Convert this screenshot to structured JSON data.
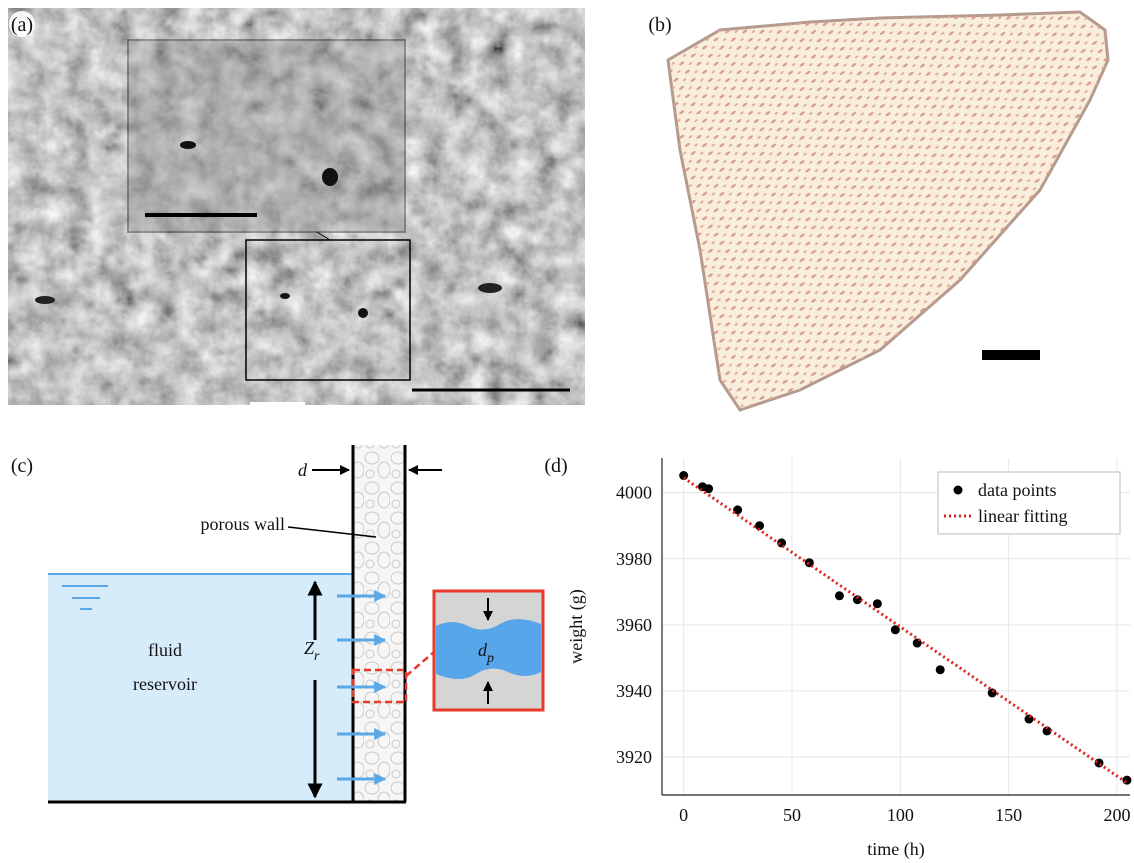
{
  "panels": {
    "a": "(a)",
    "b": "(b)",
    "c": "(c)",
    "d": "(d)"
  },
  "diagram": {
    "d_label": "d",
    "porous_wall": "porous wall",
    "z_r": {
      "main": "Z",
      "sub": "r"
    },
    "fluid_reservoir": [
      "fluid",
      "reservoir"
    ],
    "d_p": {
      "main": "d",
      "sub": "p"
    }
  },
  "chart_data": {
    "type": "scatter",
    "xlabel": "time (h)",
    "ylabel": "weight (g)",
    "xlim": [
      -10,
      206
    ],
    "ylim": [
      3908.5,
      4010.5
    ],
    "xticks": [
      0,
      50,
      100,
      150,
      200
    ],
    "yticks": [
      3920,
      3940,
      3960,
      3980,
      4000
    ],
    "grid": true,
    "legend": "upper right",
    "series": [
      {
        "name": "data points",
        "color": "#000000",
        "mode": "markers",
        "x": [
          0,
          8.7,
          11.5,
          24.9,
          35,
          45.2,
          58,
          71.9,
          80.2,
          89.4,
          97.7,
          107.8,
          118.4,
          142.4,
          159.4,
          167.7,
          191.7,
          204.6
        ],
        "values": [
          4005.2,
          4001.8,
          4001.2,
          3994.8,
          3990,
          3984.8,
          3978.8,
          3968.8,
          3967.6,
          3966.4,
          3958.5,
          3954.5,
          3946.4,
          3939.4,
          3931.5,
          3927.9,
          3918.2,
          3913.0
        ]
      },
      {
        "name": "linear fitting",
        "color": "#e0201b",
        "mode": "line",
        "style": "dotted",
        "x": [
          0,
          205
        ],
        "values": [
          4004.5,
          3912
        ]
      }
    ]
  }
}
